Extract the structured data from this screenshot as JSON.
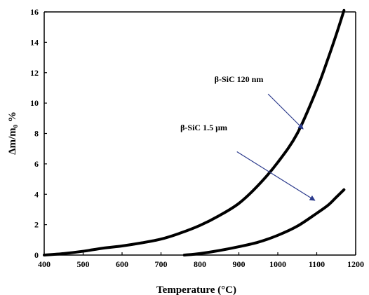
{
  "chart_data": {
    "type": "line",
    "xlabel": "Temperature (°C)",
    "ylabel": "Δm/m₀ %",
    "xlim": [
      400,
      1200
    ],
    "ylim": [
      0,
      16
    ],
    "x_ticks": [
      400,
      500,
      600,
      700,
      800,
      900,
      1000,
      1100,
      1200
    ],
    "y_ticks": [
      0,
      2,
      4,
      6,
      8,
      10,
      12,
      14,
      16
    ],
    "grid": false,
    "legend": "none",
    "series": [
      {
        "name": "β-SiC 120 nm",
        "color": "#000000",
        "x": [
          400,
          450,
          500,
          550,
          600,
          650,
          700,
          750,
          800,
          850,
          900,
          950,
          1000,
          1050,
          1100,
          1130,
          1150,
          1170
        ],
        "y": [
          0.0,
          0.1,
          0.25,
          0.45,
          0.6,
          0.8,
          1.05,
          1.45,
          1.95,
          2.6,
          3.4,
          4.6,
          6.1,
          8.0,
          10.9,
          13.0,
          14.5,
          16.1
        ]
      },
      {
        "name": "β-SiC 1.5 µm",
        "color": "#000000",
        "x": [
          760,
          800,
          850,
          900,
          950,
          1000,
          1050,
          1100,
          1130,
          1150,
          1170
        ],
        "y": [
          0.0,
          0.1,
          0.3,
          0.55,
          0.85,
          1.3,
          1.9,
          2.75,
          3.3,
          3.8,
          4.3
        ]
      }
    ],
    "annotations": [
      {
        "text": "β-SiC 120 nm",
        "series": 0,
        "arrow_to": {
          "x": 1065,
          "y": 8.3
        },
        "arrow_from": {
          "x": 975,
          "y": 10.6
        },
        "label_at": {
          "x": 900,
          "y": 11.4
        }
      },
      {
        "text": "β-SiC 1.5 µm",
        "series": 1,
        "arrow_to": {
          "x": 1095,
          "y": 3.6
        },
        "arrow_from": {
          "x": 895,
          "y": 6.8
        },
        "label_at": {
          "x": 810,
          "y": 8.2
        }
      }
    ],
    "arrow_color": "#2b3a8c"
  }
}
